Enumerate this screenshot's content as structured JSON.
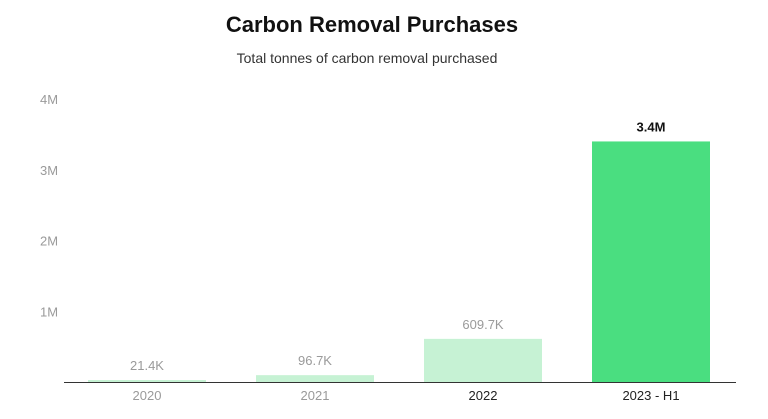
{
  "chart_data": {
    "type": "bar",
    "title": "Carbon Removal Purchases",
    "subtitle": "Total tonnes of carbon removal purchased",
    "categories": [
      "2020",
      "2021",
      "2022",
      "2023 - H1"
    ],
    "values": [
      21400,
      96700,
      609700,
      3400000
    ],
    "data_labels": [
      "21.4K",
      "96.7K",
      "609.7K",
      "3.4M"
    ],
    "ylim": [
      0,
      4000000
    ],
    "yticks": [
      1000000,
      2000000,
      3000000,
      4000000
    ],
    "ytick_labels": [
      "1M",
      "2M",
      "3M",
      "4M"
    ],
    "grid": false,
    "legend": "none",
    "bar_colors": [
      "#c6f2d4",
      "#c6f2d4",
      "#c6f2d4",
      "#4ade80"
    ],
    "highlight_index": 3,
    "highlight_category_index": 2
  }
}
